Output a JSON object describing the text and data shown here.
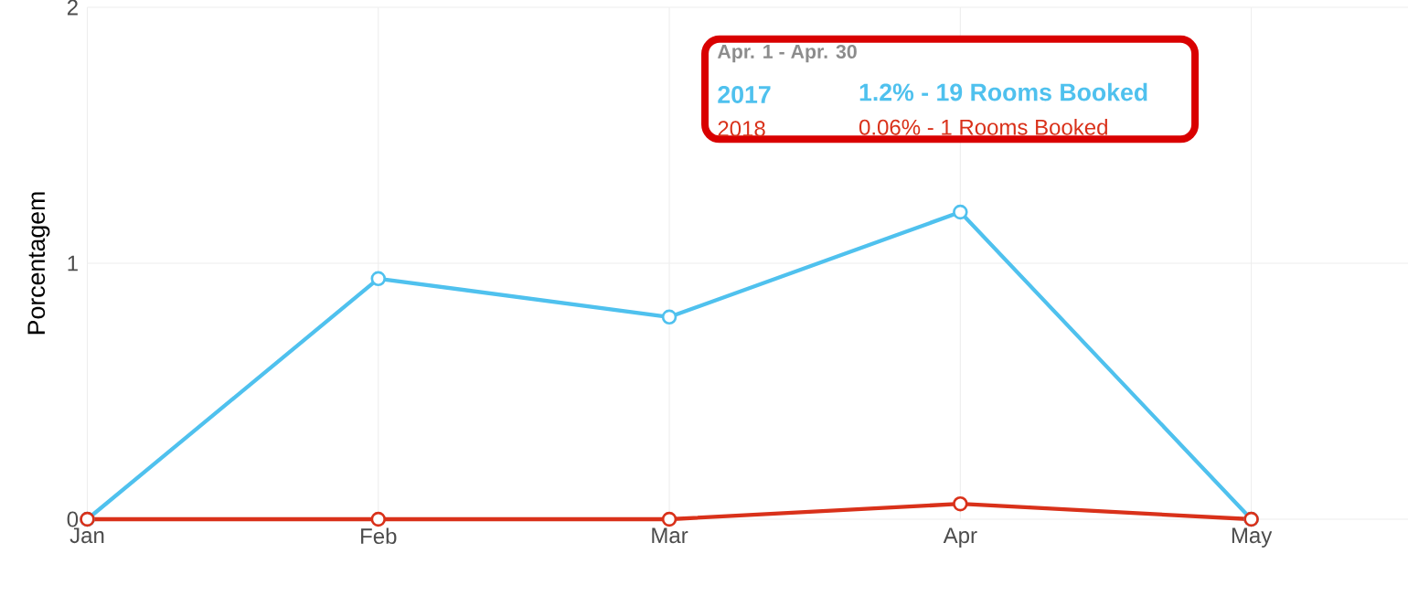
{
  "chart_data": {
    "type": "line",
    "ylabel": "Porcentagem",
    "categories": [
      "Jan",
      "Feb",
      "Mar",
      "Apr",
      "May"
    ],
    "series": [
      {
        "name": "2017",
        "color": "#4fc1ee",
        "values": [
          0,
          0.94,
          0.79,
          1.2,
          0
        ]
      },
      {
        "name": "2018",
        "color": "#d9311a",
        "values": [
          0,
          0,
          0,
          0.06,
          0
        ]
      }
    ],
    "ylim": [
      0,
      2
    ],
    "yticks": [
      0,
      1,
      2
    ],
    "grid": true,
    "marker": "circle",
    "line_style": "solid",
    "annotations": [
      "Apr. 1 - Apr. 30",
      "1.2% - 19 Rooms Booked",
      "0.06% - 1 Rooms Booked"
    ]
  }
}
